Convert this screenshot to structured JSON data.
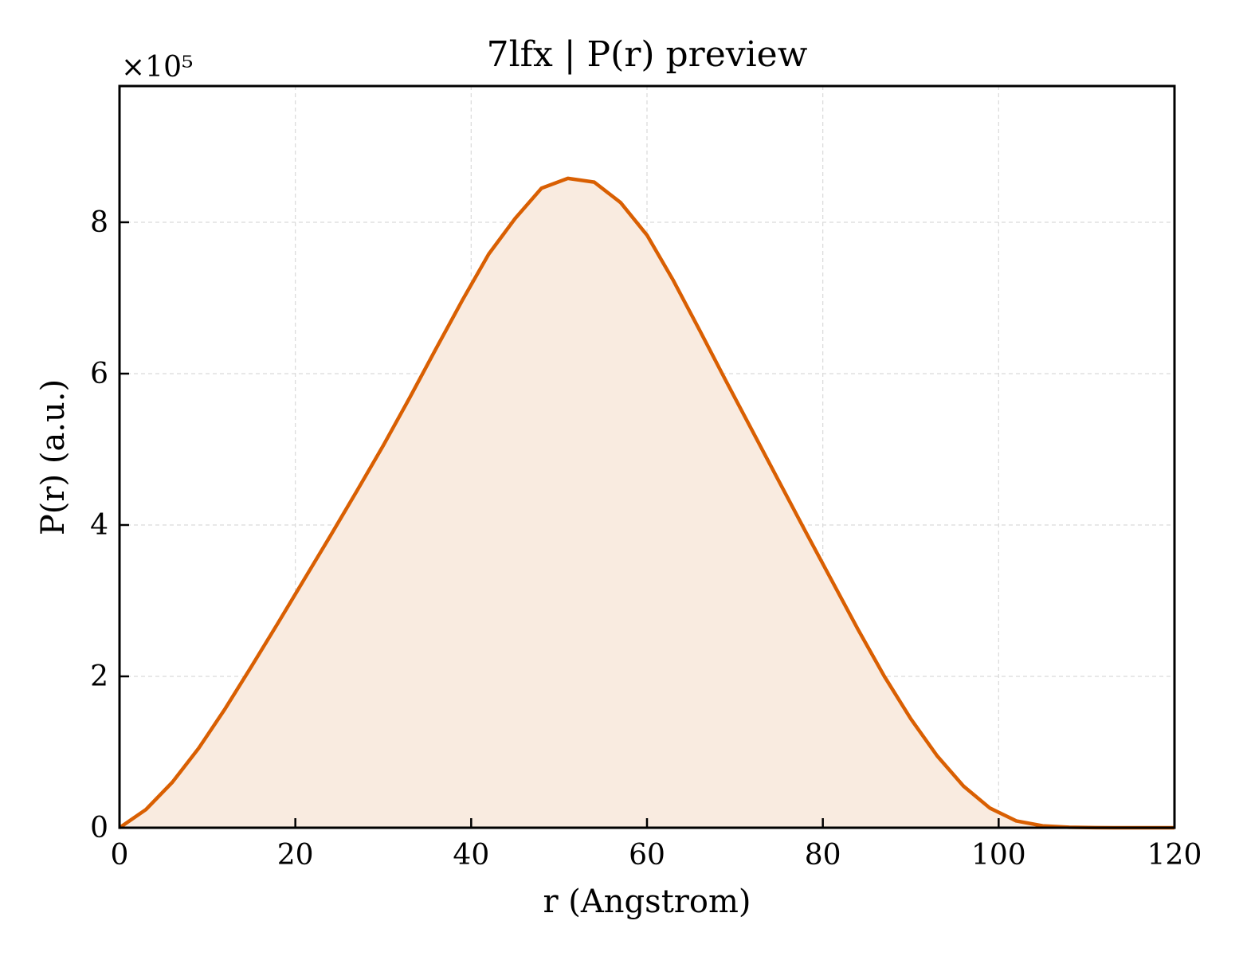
{
  "chart_data": {
    "type": "area",
    "title": "7lfx | P(r) preview",
    "xlabel": "r (Angstrom)",
    "ylabel": "P(r) (a.u.)",
    "y_multiplier_label": "×10⁵",
    "y_scale_factor": 100000,
    "xlim": [
      0,
      120
    ],
    "ylim": [
      0,
      980000
    ],
    "x_ticks": [
      0,
      20,
      40,
      60,
      80,
      100,
      120
    ],
    "y_ticks": [
      0,
      200000,
      400000,
      600000,
      800000
    ],
    "y_tick_labels": [
      "0",
      "2",
      "4",
      "6",
      "8"
    ],
    "grid": true,
    "series": [
      {
        "color": "#d95f02",
        "fill_color": "#f9ebe0",
        "x": [
          0,
          3,
          6,
          9,
          12,
          15,
          18,
          21,
          24,
          27,
          30,
          33,
          36,
          39,
          42,
          45,
          48,
          51,
          54,
          57,
          60,
          63,
          66,
          69,
          72,
          75,
          78,
          81,
          84,
          87,
          90,
          93,
          96,
          99,
          102,
          105,
          108,
          111,
          114,
          117,
          120
        ],
        "y": [
          0,
          24000,
          60000,
          105000,
          157000,
          213000,
          270000,
          328000,
          386000,
          445000,
          505000,
          568000,
          633000,
          697000,
          758000,
          805000,
          845000,
          858000,
          853000,
          826000,
          783000,
          723000,
          657000,
          590000,
          524000,
          458000,
          392000,
          327000,
          262000,
          200000,
          144000,
          95000,
          55000,
          26000,
          9000,
          2500,
          600,
          100,
          0,
          0,
          0
        ]
      }
    ]
  }
}
